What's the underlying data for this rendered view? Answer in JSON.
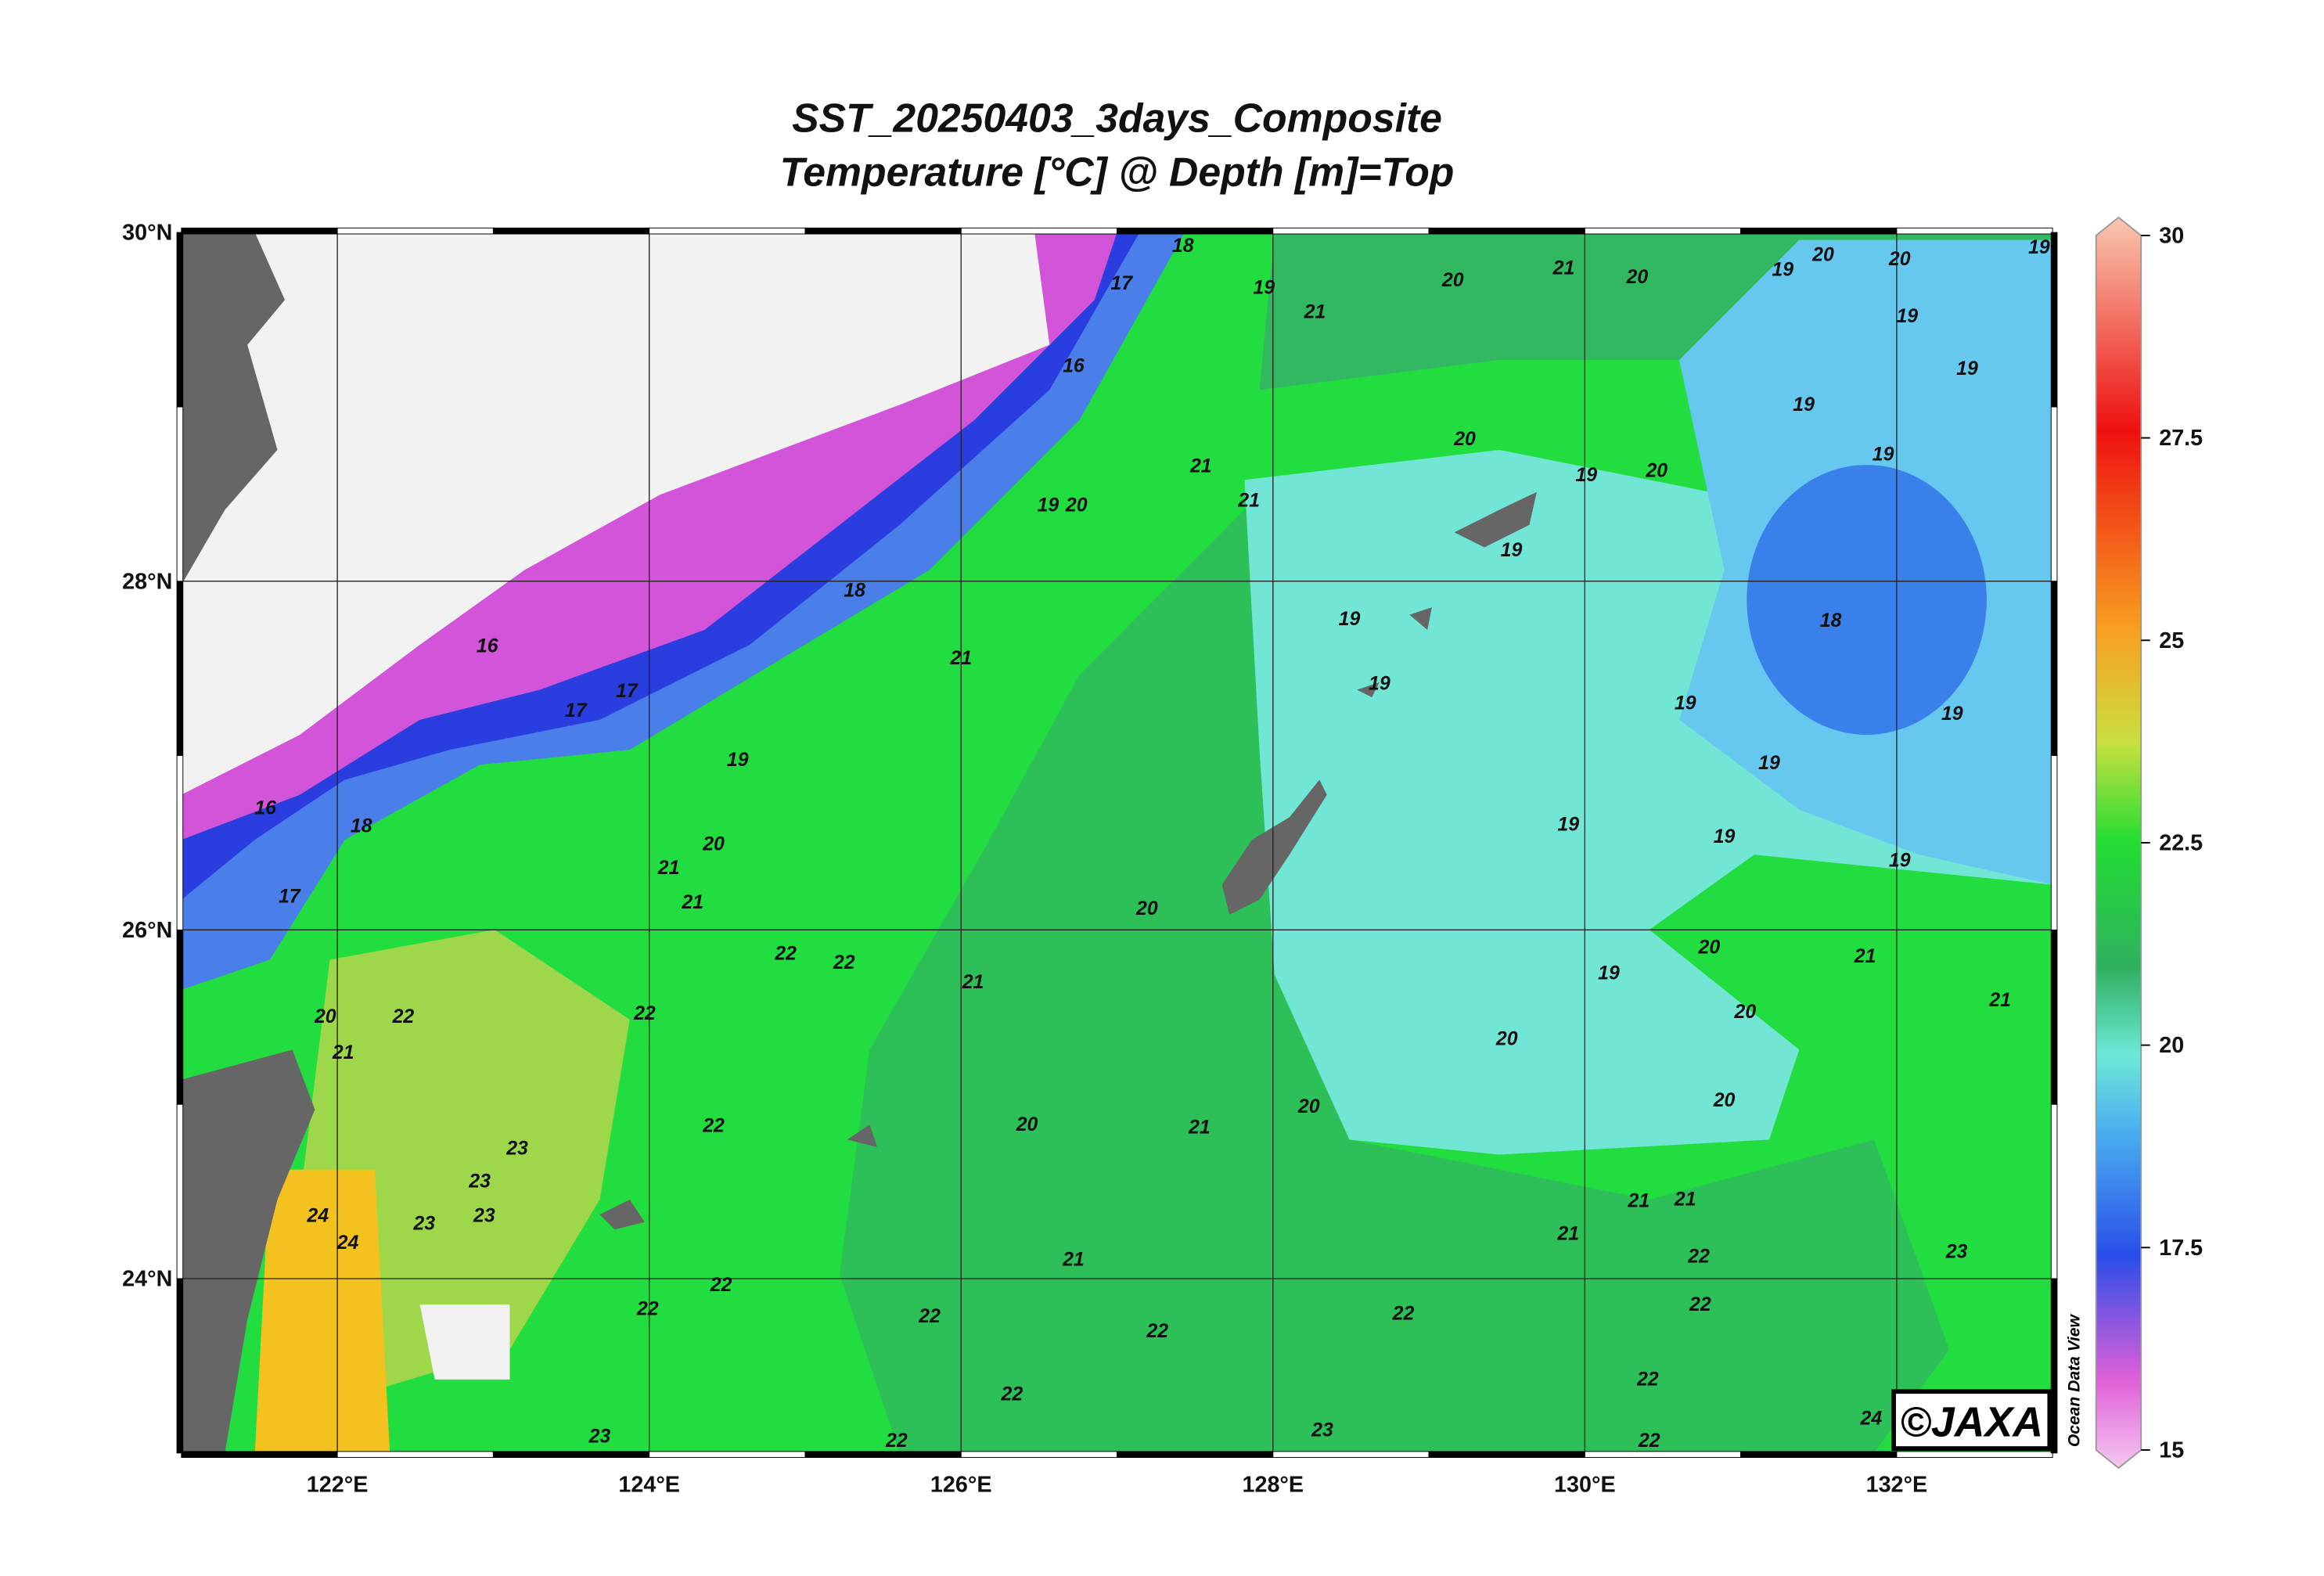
{
  "title": [
    "SST_20250403_3days_Composite",
    "Temperature [°C] @ Depth [m]=Top"
  ],
  "map": {
    "xlim": [
      121,
      133
    ],
    "ylim": [
      23,
      30
    ],
    "xticks": [
      {
        "value": 122,
        "label": "122°E"
      },
      {
        "value": 124,
        "label": "124°E"
      },
      {
        "value": 126,
        "label": "126°E"
      },
      {
        "value": 128,
        "label": "128°E"
      },
      {
        "value": 130,
        "label": "130°E"
      },
      {
        "value": 132,
        "label": "132°E"
      }
    ],
    "yticks": [
      {
        "value": 24,
        "label": "24°N"
      },
      {
        "value": 26,
        "label": "26°N"
      },
      {
        "value": 28,
        "label": "28°N"
      },
      {
        "value": 30,
        "label": "30°N"
      }
    ]
  },
  "colorbar": {
    "lim": [
      15,
      30
    ],
    "ticks": [
      15,
      17.5,
      20,
      22.5,
      25,
      27.5,
      30
    ]
  },
  "contour_labels": [
    16,
    16,
    16,
    17,
    17,
    17,
    17,
    18,
    18,
    18,
    18,
    19,
    19,
    19,
    19,
    19,
    19,
    19,
    19,
    19,
    19,
    19,
    19,
    19,
    19,
    19,
    19,
    19,
    19,
    19,
    19,
    20,
    20,
    20,
    20,
    20,
    20,
    20,
    20,
    20,
    20,
    20,
    20,
    20,
    20,
    20,
    20,
    21,
    21,
    21,
    21,
    21,
    21,
    21,
    21,
    21,
    21,
    21,
    21,
    21,
    21,
    21,
    21,
    22,
    22,
    22,
    22,
    22,
    22,
    22,
    22,
    22,
    22,
    22,
    22,
    22,
    22,
    22,
    22,
    23,
    23,
    23,
    23,
    23,
    23,
    23,
    24,
    24,
    24
  ],
  "credit": "©JAXA",
  "software": "Ocean Data View"
}
